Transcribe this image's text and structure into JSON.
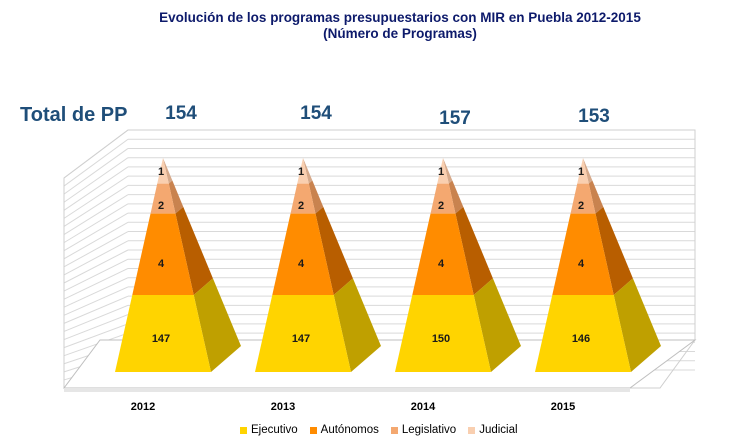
{
  "chart_data": {
    "type": "bar",
    "title": "Evolución de los programas presupuestarios con MIR en Puebla 2012-2015",
    "subtitle": "(Número de Programas)",
    "total_label": "Total de PP",
    "categories": [
      "2012",
      "2013",
      "2014",
      "2015"
    ],
    "totals": [
      "154",
      "154",
      "157",
      "153"
    ],
    "series": [
      {
        "name": "Ejecutivo",
        "values": [
          147,
          147,
          150,
          146
        ],
        "color": "#ffd400",
        "side_color": "#bfa000"
      },
      {
        "name": "Autónomos",
        "values": [
          4,
          4,
          4,
          4
        ],
        "color": "#ff8c00",
        "side_color": "#b85e00"
      },
      {
        "name": "Legislativo",
        "values": [
          2,
          2,
          2,
          2
        ],
        "color": "#f4a870",
        "side_color": "#c9834f"
      },
      {
        "name": "Judicial",
        "values": [
          1,
          1,
          1,
          1
        ],
        "color": "#f9cfb0",
        "side_color": "#d6a98a"
      }
    ],
    "legend_position": "bottom"
  }
}
